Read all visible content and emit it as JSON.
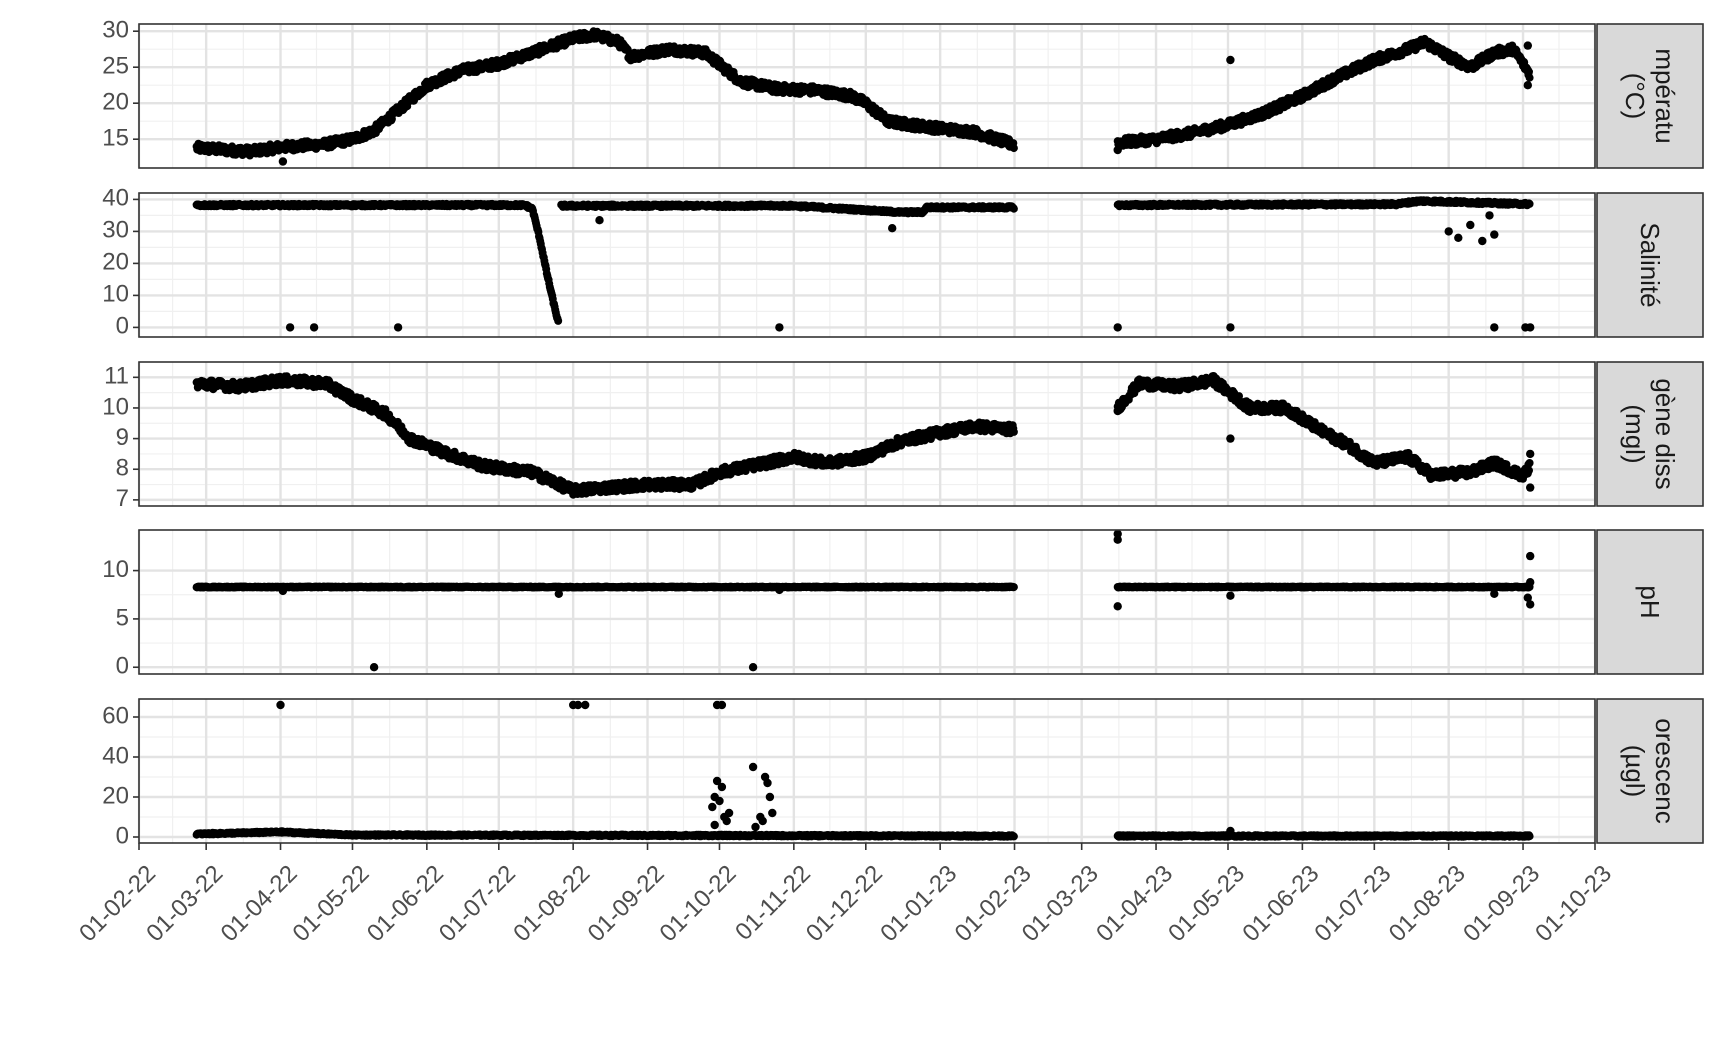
{
  "chart_data": {
    "type": "scatter",
    "x_axis": {
      "type": "date",
      "range": [
        "2022-02-01",
        "2023-10-01"
      ],
      "tick_dates": [
        "2022-02-01",
        "2022-03-01",
        "2022-04-01",
        "2022-05-01",
        "2022-06-01",
        "2022-07-01",
        "2022-08-01",
        "2022-09-01",
        "2022-10-01",
        "2022-11-01",
        "2022-12-01",
        "2023-01-01",
        "2023-02-01",
        "2023-03-01",
        "2023-04-01",
        "2023-05-01",
        "2023-06-01",
        "2023-07-01",
        "2023-08-01",
        "2023-09-01",
        "2023-10-01"
      ],
      "tick_labels": [
        "01-02-22",
        "01-03-22",
        "01-04-22",
        "01-05-22",
        "01-06-22",
        "01-07-22",
        "01-08-22",
        "01-09-22",
        "01-10-22",
        "01-11-22",
        "01-12-22",
        "01-01-23",
        "01-02-23",
        "01-03-23",
        "01-04-23",
        "01-05-23",
        "01-06-23",
        "01-07-23",
        "01-08-23",
        "01-09-23",
        "01-10-23"
      ]
    },
    "grid": true,
    "point_color": "#000000",
    "panels": [
      {
        "strip": [
          "mpératu",
          "(°C)"
        ],
        "ylim": [
          11,
          31
        ],
        "y_ticks": [
          15,
          20,
          25,
          30
        ],
        "y_tick_labels": [
          "15",
          "20",
          "25",
          "30"
        ],
        "trend": [
          [
            "2022-02-25",
            13.8
          ],
          [
            "2022-03-10",
            13.5
          ],
          [
            "2022-03-20",
            13.3
          ],
          [
            "2022-04-01",
            13.9
          ],
          [
            "2022-04-20",
            14.3
          ],
          [
            "2022-05-01",
            15.0
          ],
          [
            "2022-05-10",
            16.2
          ],
          [
            "2022-05-20",
            19.0
          ],
          [
            "2022-06-01",
            22.5
          ],
          [
            "2022-06-15",
            24.5
          ],
          [
            "2022-07-01",
            25.5
          ],
          [
            "2022-07-15",
            27.0
          ],
          [
            "2022-08-01",
            29.0
          ],
          [
            "2022-08-10",
            29.5
          ],
          [
            "2022-08-20",
            28.5
          ],
          [
            "2022-08-25",
            26.5
          ],
          [
            "2022-09-10",
            27.5
          ],
          [
            "2022-09-25",
            27.0
          ],
          [
            "2022-10-10",
            23.0
          ],
          [
            "2022-10-25",
            22.0
          ],
          [
            "2022-11-10",
            21.8
          ],
          [
            "2022-11-25",
            21.0
          ],
          [
            "2022-12-01",
            20.0
          ],
          [
            "2022-12-10",
            17.5
          ],
          [
            "2022-12-20",
            17.0
          ],
          [
            "2023-01-01",
            16.5
          ],
          [
            "2023-01-15",
            16.0
          ],
          [
            "2023-02-01",
            14.2
          ],
          null,
          [
            "2023-03-16",
            14.5
          ],
          [
            "2023-04-01",
            15.0
          ],
          [
            "2023-04-15",
            15.8
          ],
          [
            "2023-05-01",
            17.0
          ],
          [
            "2023-05-15",
            18.5
          ],
          [
            "2023-06-01",
            21.0
          ],
          [
            "2023-06-15",
            23.5
          ],
          [
            "2023-07-01",
            26.0
          ],
          [
            "2023-07-15",
            27.5
          ],
          [
            "2023-07-22",
            28.5
          ],
          [
            "2023-08-01",
            26.5
          ],
          [
            "2023-08-10",
            25.0
          ],
          [
            "2023-08-20",
            27.0
          ],
          [
            "2023-08-28",
            27.5
          ],
          [
            "2023-09-02",
            25.0
          ],
          [
            "2023-09-04",
            24.0
          ]
        ],
        "noise": 0.6,
        "extra_points": [
          [
            "2022-04-02",
            11.9
          ],
          [
            "2023-05-02",
            26.0
          ],
          [
            "2023-09-03",
            28.0
          ],
          [
            "2023-09-03",
            22.5
          ],
          [
            "2023-03-16",
            13.5
          ]
        ]
      },
      {
        "strip": [
          "Salinité"
        ],
        "ylim": [
          -3,
          42
        ],
        "y_ticks": [
          0,
          10,
          20,
          30,
          40
        ],
        "y_tick_labels": [
          "0",
          "10",
          "20",
          "30",
          "40"
        ],
        "trend": [
          [
            "2022-02-25",
            38.2
          ],
          [
            "2022-07-12",
            38.2
          ],
          [
            "2022-07-15",
            37.0
          ],
          [
            "2022-07-18",
            28.0
          ],
          [
            "2022-07-21",
            17.0
          ],
          [
            "2022-07-24",
            7.0
          ],
          [
            "2022-07-26",
            1.0
          ],
          null,
          [
            "2022-07-27",
            38.0
          ],
          [
            "2022-11-01",
            38.0
          ],
          [
            "2022-12-15",
            36.0
          ],
          [
            "2022-12-25",
            36.0
          ],
          [
            "2022-12-26",
            37.5
          ],
          [
            "2023-02-01",
            37.5
          ],
          null,
          [
            "2023-03-16",
            38.2
          ],
          [
            "2023-07-10",
            38.5
          ],
          [
            "2023-07-20",
            39.5
          ],
          [
            "2023-09-04",
            38.5
          ]
        ],
        "noise": 0.4,
        "extra_points": [
          [
            "2022-04-05",
            0
          ],
          [
            "2022-04-15",
            0
          ],
          [
            "2022-05-20",
            0
          ],
          [
            "2022-10-26",
            0
          ],
          [
            "2023-03-16",
            0
          ],
          [
            "2023-05-02",
            0
          ],
          [
            "2023-08-20",
            0
          ],
          [
            "2023-09-02",
            0
          ],
          [
            "2023-09-04",
            0
          ],
          [
            "2022-08-12",
            33.5
          ],
          [
            "2022-12-12",
            31.0
          ],
          [
            "2023-08-01",
            30.0
          ],
          [
            "2023-08-05",
            28.0
          ],
          [
            "2023-08-10",
            32.0
          ],
          [
            "2023-08-15",
            27.0
          ],
          [
            "2023-08-18",
            35.0
          ],
          [
            "2023-08-20",
            29.0
          ]
        ]
      },
      {
        "strip": [
          "gène diss",
          "(mgl)"
        ],
        "ylim": [
          6.8,
          11.5
        ],
        "y_ticks": [
          7,
          8,
          9,
          10,
          11
        ],
        "y_tick_labels": [
          "7",
          "8",
          "9",
          "10",
          "11"
        ],
        "trend": [
          [
            "2022-02-25",
            10.8
          ],
          [
            "2022-03-15",
            10.7
          ],
          [
            "2022-04-01",
            10.9
          ],
          [
            "2022-04-20",
            10.8
          ],
          [
            "2022-05-01",
            10.3
          ],
          [
            "2022-05-15",
            9.8
          ],
          [
            "2022-05-25",
            9.0
          ],
          [
            "2022-06-10",
            8.5
          ],
          [
            "2022-06-25",
            8.1
          ],
          [
            "2022-07-15",
            7.9
          ],
          [
            "2022-08-01",
            7.3
          ],
          [
            "2022-08-15",
            7.4
          ],
          [
            "2022-09-01",
            7.5
          ],
          [
            "2022-09-20",
            7.5
          ],
          [
            "2022-10-01",
            7.9
          ],
          [
            "2022-10-20",
            8.2
          ],
          [
            "2022-11-01",
            8.4
          ],
          [
            "2022-11-15",
            8.2
          ],
          [
            "2022-12-01",
            8.4
          ],
          [
            "2022-12-15",
            8.9
          ],
          [
            "2023-01-01",
            9.2
          ],
          [
            "2023-01-15",
            9.4
          ],
          [
            "2023-02-01",
            9.3
          ],
          null,
          [
            "2023-03-16",
            10.0
          ],
          [
            "2023-03-25",
            10.8
          ],
          [
            "2023-04-10",
            10.7
          ],
          [
            "2023-04-25",
            10.9
          ],
          [
            "2023-05-10",
            10.0
          ],
          [
            "2023-05-25",
            10.0
          ],
          [
            "2023-06-10",
            9.2
          ],
          [
            "2023-06-20",
            8.8
          ],
          [
            "2023-07-01",
            8.2
          ],
          [
            "2023-07-15",
            8.4
          ],
          [
            "2023-07-25",
            7.8
          ],
          [
            "2023-08-10",
            7.9
          ],
          [
            "2023-08-20",
            8.2
          ],
          [
            "2023-09-01",
            7.8
          ],
          [
            "2023-09-04",
            8.1
          ]
        ],
        "noise": 0.15,
        "extra_points": [
          [
            "2023-05-02",
            9.0
          ],
          [
            "2023-09-04",
            7.4
          ],
          [
            "2023-09-04",
            8.5
          ],
          [
            "2023-03-16",
            9.9
          ]
        ]
      },
      {
        "strip": [
          "pH"
        ],
        "ylim": [
          -0.7,
          14.2
        ],
        "y_ticks": [
          0,
          5,
          10
        ],
        "y_tick_labels": [
          "0",
          "5",
          "10"
        ],
        "trend": [
          [
            "2022-02-25",
            8.3
          ],
          [
            "2023-02-01",
            8.3
          ],
          null,
          [
            "2023-03-16",
            8.3
          ],
          [
            "2023-09-04",
            8.3
          ]
        ],
        "noise": 0.05,
        "extra_points": [
          [
            "2022-04-02",
            7.9
          ],
          [
            "2022-05-10",
            0
          ],
          [
            "2022-07-26",
            7.6
          ],
          [
            "2022-10-15",
            0
          ],
          [
            "2022-10-26",
            8.0
          ],
          [
            "2023-03-16",
            13.8
          ],
          [
            "2023-03-16",
            13.2
          ],
          [
            "2023-03-16",
            6.3
          ],
          [
            "2023-05-02",
            7.4
          ],
          [
            "2023-08-20",
            7.6
          ],
          [
            "2023-09-04",
            11.5
          ],
          [
            "2023-09-04",
            6.5
          ],
          [
            "2023-09-03",
            7.2
          ],
          [
            "2023-09-04",
            8.8
          ]
        ]
      },
      {
        "strip": [
          "orescenc",
          "(µgl)"
        ],
        "ylim": [
          -3,
          69
        ],
        "y_ticks": [
          0,
          20,
          40,
          60
        ],
        "y_tick_labels": [
          "0",
          "20",
          "40",
          "60"
        ],
        "trend": [
          [
            "2022-02-25",
            1.5
          ],
          [
            "2022-04-01",
            2.5
          ],
          [
            "2022-05-01",
            1.0
          ],
          [
            "2023-02-01",
            0.5
          ],
          null,
          [
            "2023-03-16",
            0.5
          ],
          [
            "2023-09-04",
            0.5
          ]
        ],
        "noise": 0.4,
        "extra_points": [
          [
            "2022-04-01",
            66
          ],
          [
            "2022-08-01",
            66
          ],
          [
            "2022-08-03",
            66
          ],
          [
            "2022-08-06",
            66
          ],
          [
            "2022-09-30",
            66
          ],
          [
            "2022-10-02",
            66
          ],
          [
            "2022-09-30",
            28
          ],
          [
            "2022-09-29",
            20
          ],
          [
            "2022-09-28",
            15
          ],
          [
            "2022-10-01",
            18
          ],
          [
            "2022-10-02",
            25
          ],
          [
            "2022-10-03",
            10
          ],
          [
            "2022-10-04",
            8
          ],
          [
            "2022-10-05",
            12
          ],
          [
            "2022-09-29",
            6
          ],
          [
            "2022-10-15",
            35
          ],
          [
            "2022-10-20",
            30
          ],
          [
            "2022-10-21",
            27
          ],
          [
            "2022-10-22",
            20
          ],
          [
            "2022-10-18",
            10
          ],
          [
            "2022-10-23",
            12
          ],
          [
            "2022-10-16",
            5
          ],
          [
            "2022-10-19",
            8
          ],
          [
            "2023-05-02",
            3
          ]
        ]
      }
    ]
  }
}
